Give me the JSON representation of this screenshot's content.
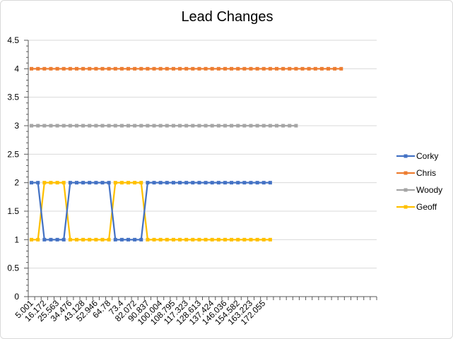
{
  "chart_data": {
    "type": "line",
    "title": "Lead Changes",
    "xlabel": "",
    "ylabel": "",
    "ylim": [
      0,
      4.5
    ],
    "y_ticks": [
      "0",
      "0.5",
      "1",
      "1.5",
      "2",
      "2.5",
      "3",
      "3.5",
      "4",
      "4.5"
    ],
    "x_tick_labels": [
      "5.001",
      "16.172",
      "25.563",
      "34.476",
      "43.128",
      "52.946",
      "64.78",
      "73.4",
      "82.072",
      "90.837",
      "100.004",
      "108.795",
      "117.323",
      "128.613",
      "137.424",
      "146.036",
      "154.582",
      "163.223",
      "172.055"
    ],
    "grid": true,
    "legend_position": "right",
    "series": [
      {
        "name": "Corky",
        "color": "#4472C4",
        "values": [
          2,
          2,
          1,
          1,
          1,
          1,
          2,
          2,
          2,
          2,
          2,
          2,
          2,
          1,
          1,
          1,
          1,
          1,
          2,
          2,
          2,
          2,
          2,
          2,
          2,
          2,
          2,
          2,
          2,
          2,
          2,
          2,
          2,
          2,
          2,
          2,
          2,
          2
        ]
      },
      {
        "name": "Chris",
        "color": "#ED7D31",
        "values": [
          4,
          4,
          4,
          4,
          4,
          4,
          4,
          4,
          4,
          4,
          4,
          4,
          4,
          4,
          4,
          4,
          4,
          4,
          4,
          4,
          4,
          4,
          4,
          4,
          4,
          4,
          4,
          4,
          4,
          4,
          4,
          4,
          4,
          4,
          4,
          4,
          4,
          4,
          4,
          4,
          4,
          4,
          4,
          4,
          4,
          4,
          4,
          4,
          4
        ]
      },
      {
        "name": "Woody",
        "color": "#A5A5A5",
        "values": [
          3,
          3,
          3,
          3,
          3,
          3,
          3,
          3,
          3,
          3,
          3,
          3,
          3,
          3,
          3,
          3,
          3,
          3,
          3,
          3,
          3,
          3,
          3,
          3,
          3,
          3,
          3,
          3,
          3,
          3,
          3,
          3,
          3,
          3,
          3,
          3,
          3,
          3,
          3,
          3,
          3,
          3
        ]
      },
      {
        "name": "Geoff",
        "color": "#FFC000",
        "values": [
          1,
          1,
          2,
          2,
          2,
          2,
          1,
          1,
          1,
          1,
          1,
          1,
          1,
          2,
          2,
          2,
          2,
          2,
          1,
          1,
          1,
          1,
          1,
          1,
          1,
          1,
          1,
          1,
          1,
          1,
          1,
          1,
          1,
          1,
          1,
          1,
          1,
          1
        ]
      }
    ]
  }
}
